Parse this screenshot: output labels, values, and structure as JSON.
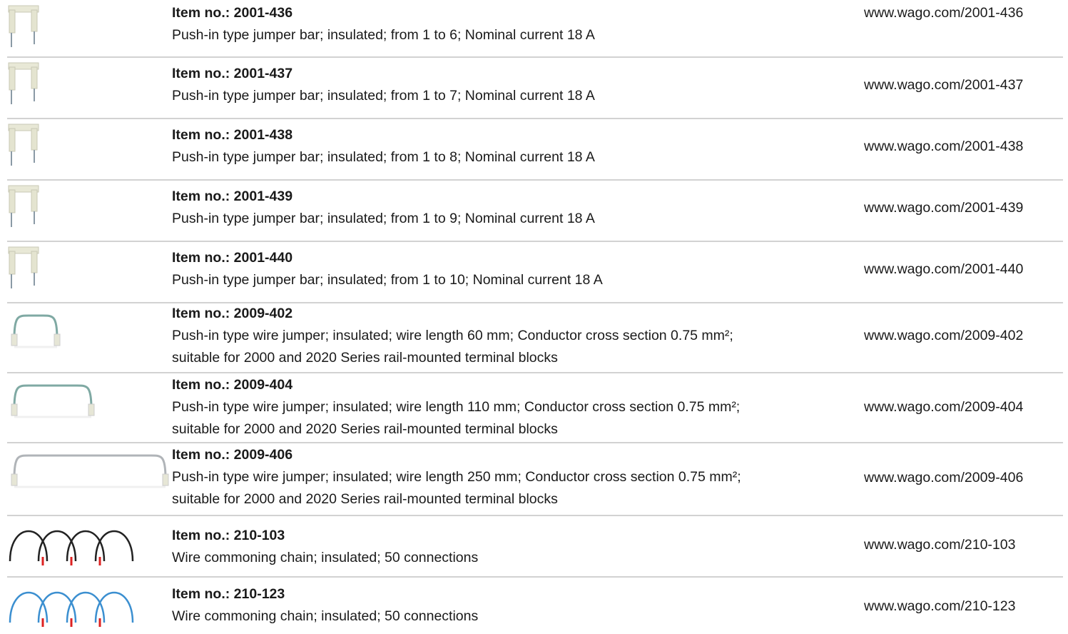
{
  "rows": [
    {
      "item": "Item no.: 2001-436",
      "description": [
        "Push-in type jumper bar; insulated; from 1 to 6; Nominal current 18 A"
      ],
      "url": "www.wago.com/2001-436"
    },
    {
      "item": "Item no.: 2001-437",
      "description": [
        "Push-in type jumper bar; insulated; from 1 to 7; Nominal current 18 A"
      ],
      "url": "www.wago.com/2001-437"
    },
    {
      "item": "Item no.: 2001-438",
      "description": [
        "Push-in type jumper bar; insulated; from 1 to 8; Nominal current 18 A"
      ],
      "url": "www.wago.com/2001-438"
    },
    {
      "item": "Item no.: 2001-439",
      "description": [
        "Push-in type jumper bar; insulated; from 1 to 9; Nominal current 18 A"
      ],
      "url": "www.wago.com/2001-439"
    },
    {
      "item": "Item no.: 2001-440",
      "description": [
        "Push-in type jumper bar; insulated; from 1 to 10; Nominal current 18 A"
      ],
      "url": "www.wago.com/2001-440"
    },
    {
      "item": "Item no.: 2009-402",
      "description": [
        "Push-in type wire jumper; insulated; wire length 60 mm; Conductor cross section 0.75 mm²;",
        "suitable for 2000 and 2020 Series rail-mounted terminal blocks"
      ],
      "url": "www.wago.com/2009-402"
    },
    {
      "item": "Item no.: 2009-404",
      "description": [
        "Push-in type wire jumper; insulated; wire length 110 mm; Conductor cross section 0.75 mm²;",
        "suitable for 2000 and 2020 Series rail-mounted terminal blocks"
      ],
      "url": "www.wago.com/2009-404"
    },
    {
      "item": "Item no.: 2009-406",
      "description": [
        "Push-in type wire jumper; insulated; wire length 250 mm; Conductor cross section 0.75 mm²;",
        "suitable for 2000 and 2020 Series rail-mounted terminal blocks"
      ],
      "url": "www.wago.com/2009-406"
    },
    {
      "item": "Item no.: 210-103",
      "description": [
        "Wire commoning chain; insulated; 50 connections"
      ],
      "url": "www.wago.com/210-103"
    },
    {
      "item": "Item no.: 210-123",
      "description": [
        "Wire commoning chain; insulated; 50 connections"
      ],
      "url": "www.wago.com/210-123"
    }
  ]
}
